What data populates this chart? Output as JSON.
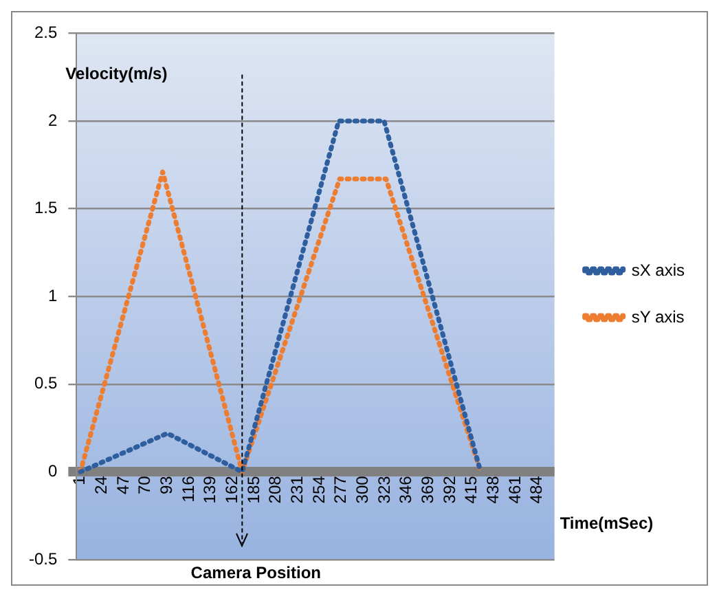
{
  "chart_data": {
    "type": "line",
    "xlabel": "Time(mSec)",
    "ylabel": "Velocity(m/s)",
    "series": [
      {
        "name": "sX axis",
        "color": "#2e5e9e",
        "x": [
          1,
          93,
          172,
          274,
          322,
          424
        ],
        "values": [
          0,
          0.22,
          0,
          2,
          2,
          0
        ]
      },
      {
        "name": "sY axis",
        "color": "#ed7d31",
        "x": [
          1,
          88,
          172,
          275,
          324,
          424
        ],
        "values": [
          0,
          1.71,
          0,
          1.67,
          1.67,
          0
        ]
      }
    ],
    "xlim": [
      -3,
      502
    ],
    "xticks": [
      1,
      24,
      47,
      70,
      93,
      116,
      139,
      162,
      185,
      208,
      231,
      254,
      277,
      300,
      323,
      346,
      369,
      392,
      415,
      438,
      461,
      484
    ],
    "ylim": [
      -0.5,
      2.5
    ],
    "yticks": [
      -0.5,
      0,
      0.5,
      1,
      1.5,
      2,
      2.5
    ],
    "ref_lines": [
      {
        "axis": "x",
        "value": 172,
        "label": "Camera Position",
        "line_style": "dashed"
      }
    ],
    "grid": "y",
    "legend": "right",
    "marker": "none",
    "line_style": "dotted"
  }
}
